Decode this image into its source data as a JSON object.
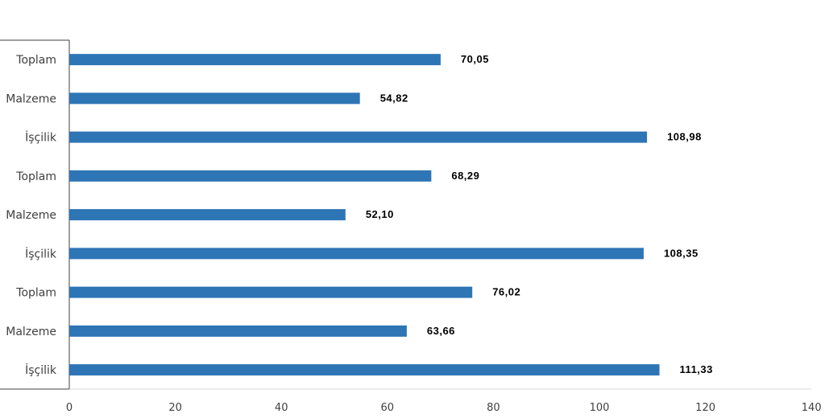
{
  "chart_data": {
    "type": "bar",
    "orientation": "horizontal",
    "categories": [
      "Toplam",
      "Malzeme",
      "İşçilik",
      "Toplam",
      "Malzeme",
      "İşçilik",
      "Toplam",
      "Malzeme",
      "İşçilik"
    ],
    "values": [
      70.05,
      54.82,
      108.98,
      68.29,
      52.1,
      108.35,
      76.02,
      63.66,
      111.33
    ],
    "value_labels": [
      "70,05",
      "54,82",
      "108,98",
      "68,29",
      "52,10",
      "108,35",
      "76,02",
      "63,66",
      "111,33"
    ],
    "xlim": [
      0,
      140
    ],
    "x_ticks": [
      0,
      20,
      40,
      60,
      80,
      100,
      120,
      140
    ],
    "x_tick_labels": [
      "0",
      "20",
      "40",
      "60",
      "80",
      "100",
      "120",
      "140"
    ],
    "title": "",
    "xlabel": "",
    "ylabel": "",
    "grid": false,
    "legend": "none",
    "bar_color": "#2e75b6"
  }
}
